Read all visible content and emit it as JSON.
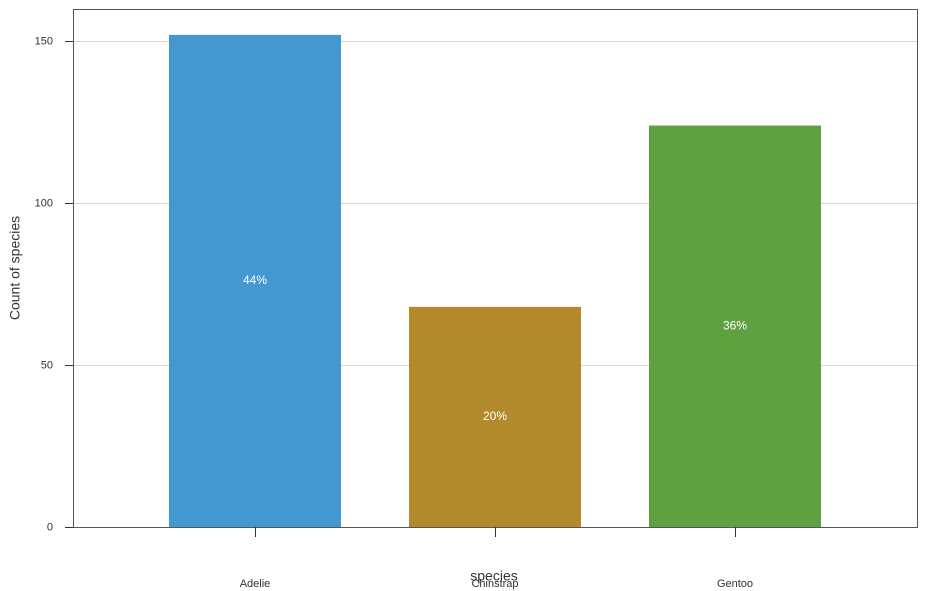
{
  "chart_data": {
    "type": "bar",
    "x_label": "species",
    "y_label": "Count of species",
    "categories": [
      "Adelie",
      "Chinstrap",
      "Gentoo"
    ],
    "values": [
      152,
      68,
      124
    ],
    "colors": [
      "#4398cf",
      "#b38a2b",
      "#5fa041"
    ],
    "bar_labels": [
      "44%",
      "20%",
      "36%"
    ],
    "ylim": [
      0,
      160
    ],
    "yticks": [
      0,
      50,
      100,
      150
    ],
    "grid": true
  }
}
